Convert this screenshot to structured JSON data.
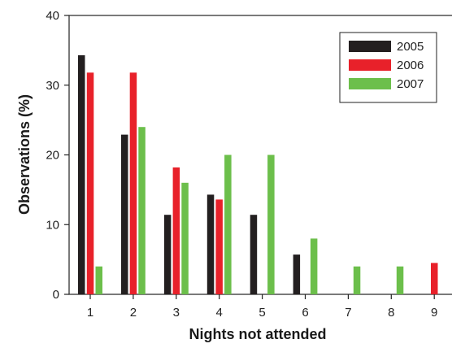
{
  "chart_data": {
    "type": "bar",
    "xlabel": "Nights not attended",
    "ylabel": "Observations (%)",
    "categories": [
      "1",
      "2",
      "3",
      "4",
      "5",
      "6",
      "7",
      "8",
      "9"
    ],
    "ylim": [
      0,
      40
    ],
    "yticks": [
      0,
      10,
      20,
      30,
      40
    ],
    "legend_position": "top-right",
    "series": [
      {
        "name": "2005",
        "color": "#231f20",
        "values": [
          34.3,
          22.9,
          11.4,
          14.3,
          11.4,
          5.7,
          0,
          0,
          0
        ]
      },
      {
        "name": "2006",
        "color": "#e8212a",
        "values": [
          31.8,
          31.8,
          18.2,
          13.6,
          0,
          0,
          0,
          0,
          4.5
        ]
      },
      {
        "name": "2007",
        "color": "#6cbf4b",
        "values": [
          4,
          24,
          16,
          20,
          20,
          8,
          4,
          4,
          0
        ]
      }
    ]
  }
}
